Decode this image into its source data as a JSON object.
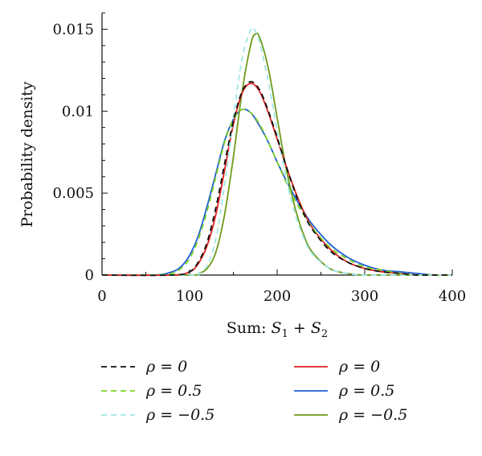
{
  "chart_data": {
    "type": "line",
    "title": "",
    "xlabel_parts": {
      "prefix": "Sum: ",
      "var1": "S",
      "sub1": "1",
      "plus": " + ",
      "var2": "S",
      "sub2": "2"
    },
    "ylabel": "Probability density",
    "xlim": [
      0,
      400
    ],
    "ylim": [
      0,
      0.016
    ],
    "x_ticks": [
      0,
      100,
      200,
      300,
      400
    ],
    "x_tick_labels": [
      "0",
      "100",
      "200",
      "300",
      "400"
    ],
    "y_ticks": [
      0,
      0.005,
      0.01,
      0.015
    ],
    "y_tick_labels": [
      "0",
      "0.005",
      "0.01",
      "0.015"
    ],
    "grid": false,
    "legend_placement": "bottom",
    "series": [
      {
        "name": "ρ = 0",
        "color": "#111111",
        "dashed": true,
        "x": [
          80,
          100,
          110,
          120,
          130,
          140,
          150,
          160,
          170,
          180,
          190,
          200,
          210,
          220,
          230,
          240,
          260,
          280,
          300,
          320,
          340,
          360,
          380,
          400
        ],
        "y": [
          0,
          0.0002,
          0.0008,
          0.002,
          0.0041,
          0.0068,
          0.0094,
          0.0112,
          0.0118,
          0.0113,
          0.01,
          0.0084,
          0.0067,
          0.0051,
          0.0038,
          0.0028,
          0.0015,
          0.0008,
          0.0004,
          0.0002,
          0.0001,
          0,
          0,
          0
        ]
      },
      {
        "name": "ρ = 0.5",
        "color": "#7ed321",
        "dashed": true,
        "x": [
          60,
          80,
          90,
          100,
          110,
          120,
          130,
          140,
          150,
          160,
          170,
          180,
          190,
          200,
          210,
          220,
          230,
          240,
          260,
          280,
          300,
          320,
          340,
          360,
          380,
          400
        ],
        "y": [
          0,
          0.0001,
          0.0004,
          0.001,
          0.0022,
          0.0039,
          0.006,
          0.0081,
          0.0095,
          0.0101,
          0.0099,
          0.0092,
          0.0081,
          0.0069,
          0.0057,
          0.0046,
          0.0037,
          0.0029,
          0.0017,
          0.001,
          0.0005,
          0.0003,
          0.0001,
          0,
          0,
          0
        ]
      },
      {
        "name": "ρ = −0.5",
        "color": "#9fe8e8",
        "dashed": true,
        "x": [
          100,
          110,
          120,
          130,
          140,
          150,
          160,
          170,
          175,
          180,
          190,
          200,
          210,
          220,
          230,
          240,
          260,
          280,
          300,
          320,
          340,
          360,
          380,
          400
        ],
        "y": [
          0,
          0.0001,
          0.0006,
          0.0022,
          0.0055,
          0.0096,
          0.0132,
          0.015,
          0.0149,
          0.0142,
          0.0118,
          0.0088,
          0.006,
          0.0038,
          0.0023,
          0.0013,
          0.0004,
          0.0001,
          0,
          0,
          0,
          0,
          0,
          0
        ]
      },
      {
        "name": "ρ = 0",
        "color": "#e02020",
        "dashed": false,
        "x": [
          80,
          100,
          110,
          120,
          130,
          140,
          150,
          160,
          170,
          180,
          190,
          200,
          210,
          220,
          230,
          240,
          260,
          280,
          300,
          320,
          340,
          360,
          380,
          400
        ],
        "y": [
          0,
          0.0002,
          0.0007,
          0.0018,
          0.0037,
          0.0064,
          0.0092,
          0.0111,
          0.0117,
          0.0112,
          0.0099,
          0.0083,
          0.0067,
          0.0052,
          0.0039,
          0.0029,
          0.0016,
          0.0008,
          0.0004,
          0.0002,
          0.0001,
          0,
          0,
          0
        ]
      },
      {
        "name": "ρ = 0.5",
        "color": "#2060d0",
        "dashed": false,
        "x": [
          60,
          80,
          90,
          100,
          110,
          120,
          130,
          140,
          150,
          160,
          170,
          180,
          190,
          200,
          210,
          220,
          230,
          240,
          260,
          280,
          300,
          320,
          340,
          360,
          380,
          400
        ],
        "y": [
          0,
          0.0002,
          0.0005,
          0.0012,
          0.0024,
          0.0042,
          0.0062,
          0.0082,
          0.0095,
          0.0101,
          0.0099,
          0.0091,
          0.0081,
          0.0069,
          0.0058,
          0.0048,
          0.0039,
          0.0031,
          0.0019,
          0.0011,
          0.0006,
          0.0003,
          0.0002,
          0.0001,
          0,
          0
        ]
      },
      {
        "name": "ρ = −0.5",
        "color": "#6f9a1a",
        "dashed": false,
        "x": [
          100,
          110,
          120,
          130,
          140,
          150,
          160,
          170,
          175,
          180,
          190,
          200,
          210,
          220,
          230,
          240,
          260,
          280,
          300,
          320,
          340,
          360,
          380,
          400
        ],
        "y": [
          0,
          0.0001,
          0.0004,
          0.0014,
          0.0037,
          0.0072,
          0.0112,
          0.0141,
          0.0147,
          0.0145,
          0.0126,
          0.0096,
          0.0066,
          0.0042,
          0.0025,
          0.0014,
          0.0004,
          0.0001,
          0,
          0,
          0,
          0,
          0,
          0
        ]
      }
    ]
  }
}
